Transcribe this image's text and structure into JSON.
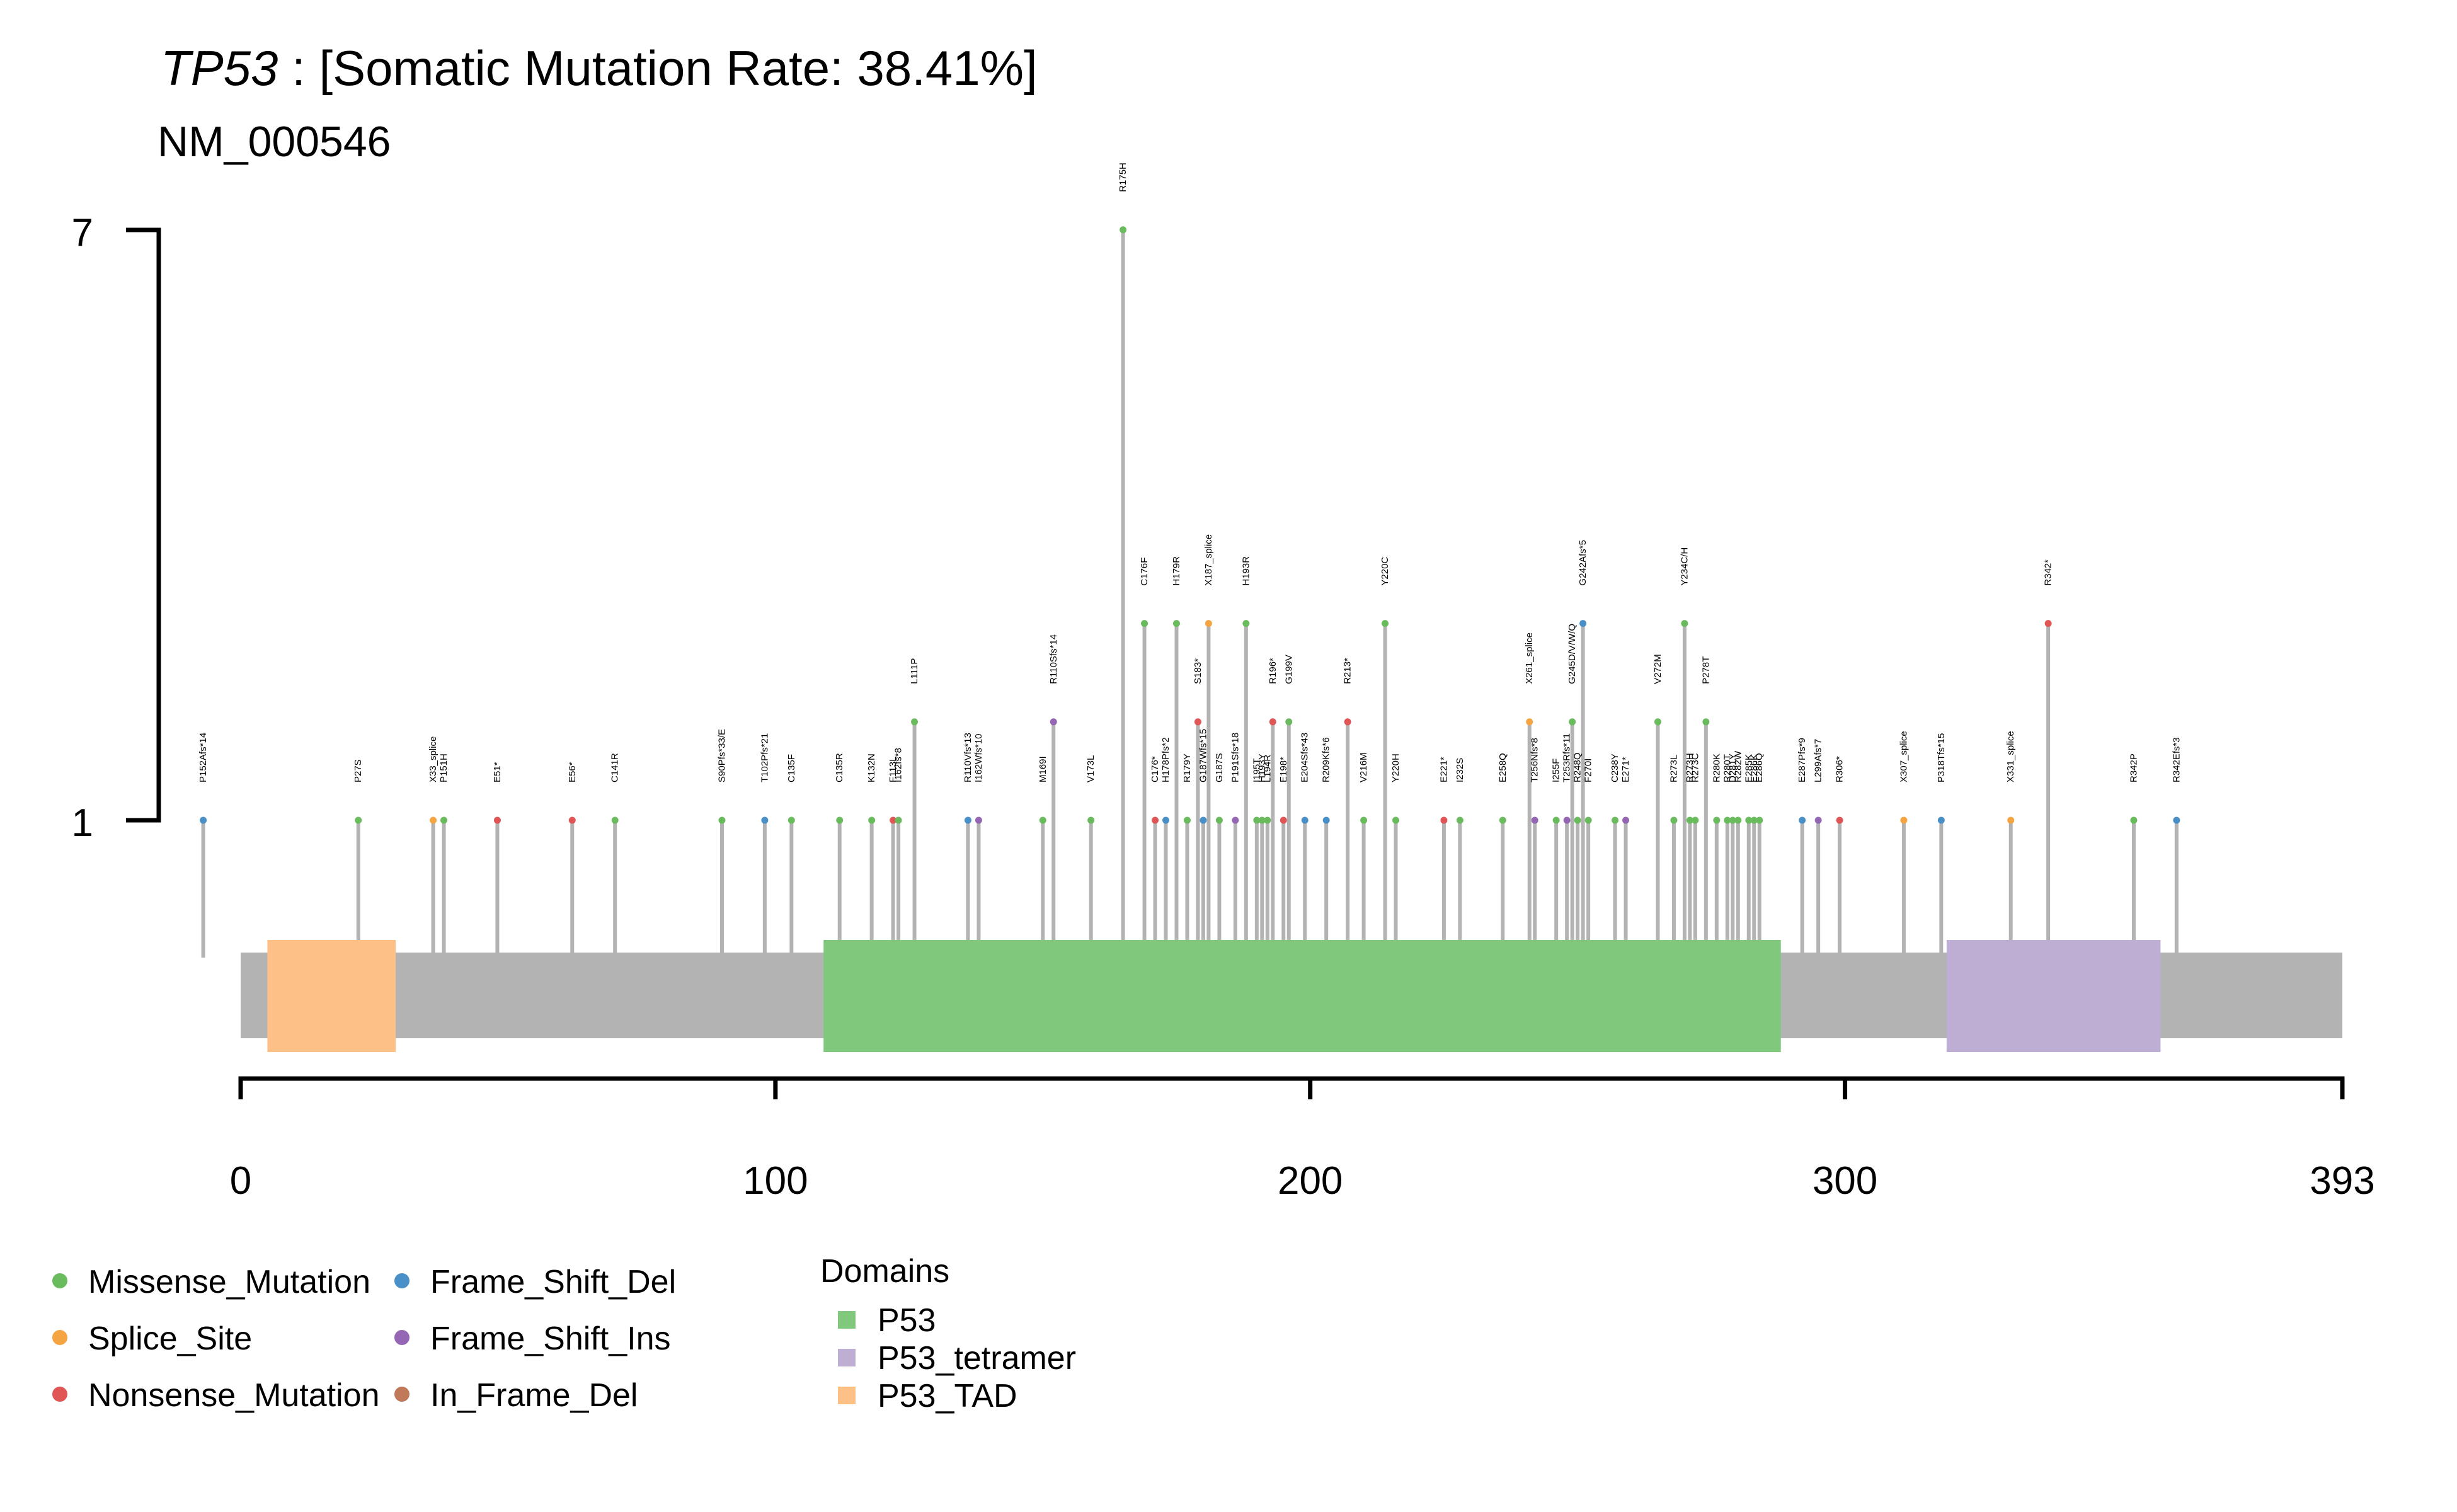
{
  "chart_data": {
    "type": "lollipop",
    "gene": "TP53",
    "title_rest": " : [Somatic Mutation Rate: 38.41%]",
    "subtitle": "NM_000546",
    "protein_length": 393,
    "y_ticks": [
      "7",
      "1"
    ],
    "x_ticks": [
      0,
      100,
      200,
      300,
      393
    ],
    "colors": {
      "Missense_Mutation": "#6ABB5D",
      "Splice_Site": "#F4A440",
      "Nonsense_Mutation": "#E05555",
      "Frame_Shift_Del": "#4A90C8",
      "Frame_Shift_Ins": "#9466B4",
      "In_Frame_Del": "#C07A5A",
      "backbone": "#B3B3B3",
      "P53": "#80C97C",
      "P53_tetramer": "#BEAED4",
      "P53_TAD": "#FDC086"
    },
    "domains": [
      {
        "name": "P53_TAD",
        "start": 5,
        "end": 29
      },
      {
        "name": "P53",
        "start": 109,
        "end": 288
      },
      {
        "name": "P53_tetramer",
        "start": 319,
        "end": 359
      }
    ],
    "mutations": [
      {
        "pos": -7,
        "count": 1,
        "type": "Frame_Shift_Del",
        "label": "P152Afs*14"
      },
      {
        "pos": 22,
        "count": 1,
        "type": "Missense_Mutation",
        "label": "P27S"
      },
      {
        "pos": 36,
        "count": 1,
        "type": "Splice_Site",
        "label": "X33_splice"
      },
      {
        "pos": 38,
        "count": 1,
        "type": "Missense_Mutation",
        "label": "P151H"
      },
      {
        "pos": 48,
        "count": 1,
        "type": "Nonsense_Mutation",
        "label": "E51*"
      },
      {
        "pos": 62,
        "count": 1,
        "type": "Nonsense_Mutation",
        "label": "E56*"
      },
      {
        "pos": 70,
        "count": 1,
        "type": "Missense_Mutation",
        "label": "C141R"
      },
      {
        "pos": 90,
        "count": 1,
        "type": "Missense_Mutation",
        "label": "S90Pfs*33/E"
      },
      {
        "pos": 98,
        "count": 1,
        "type": "Frame_Shift_Del",
        "label": "T102Pfs*21"
      },
      {
        "pos": 103,
        "count": 1,
        "type": "Missense_Mutation",
        "label": "C135F"
      },
      {
        "pos": 112,
        "count": 1,
        "type": "Missense_Mutation",
        "label": "C135R"
      },
      {
        "pos": 118,
        "count": 1,
        "type": "Missense_Mutation",
        "label": "K132N"
      },
      {
        "pos": 122,
        "count": 1,
        "type": "Nonsense_Mutation",
        "label": "F113L"
      },
      {
        "pos": 123,
        "count": 1,
        "type": "Missense_Mutation",
        "label": "I162fs*8"
      },
      {
        "pos": 126,
        "count": 2,
        "type": "Missense_Mutation",
        "label": "L111P"
      },
      {
        "pos": 136,
        "count": 1,
        "type": "Frame_Shift_Del",
        "label": "R110Vfs*13"
      },
      {
        "pos": 138,
        "count": 1,
        "type": "Frame_Shift_Ins",
        "label": "I162Wfs*10"
      },
      {
        "pos": 150,
        "count": 1,
        "type": "Missense_Mutation",
        "label": "M169I"
      },
      {
        "pos": 152,
        "count": 2,
        "type": "Frame_Shift_Ins",
        "label": "R110Sfs*14"
      },
      {
        "pos": 159,
        "count": 1,
        "type": "Missense_Mutation",
        "label": "V173L"
      },
      {
        "pos": 165,
        "count": 7,
        "type": "Missense_Mutation",
        "label": "R175H"
      },
      {
        "pos": 169,
        "count": 3,
        "type": "Missense_Mutation",
        "label": "C176F"
      },
      {
        "pos": 171,
        "count": 1,
        "type": "Nonsense_Mutation",
        "label": "C176*"
      },
      {
        "pos": 173,
        "count": 1,
        "type": "Frame_Shift_Del",
        "label": "H178Pfs*2"
      },
      {
        "pos": 175,
        "count": 3,
        "type": "Missense_Mutation",
        "label": "H179R"
      },
      {
        "pos": 177,
        "count": 1,
        "type": "Missense_Mutation",
        "label": "R179Y"
      },
      {
        "pos": 179,
        "count": 2,
        "type": "Nonsense_Mutation",
        "label": "S183*"
      },
      {
        "pos": 180,
        "count": 1,
        "type": "Frame_Shift_Del",
        "label": "G187Wfs*15"
      },
      {
        "pos": 181,
        "count": 3,
        "type": "Splice_Site",
        "label": "X187_splice"
      },
      {
        "pos": 183,
        "count": 1,
        "type": "Missense_Mutation",
        "label": "G187S"
      },
      {
        "pos": 186,
        "count": 1,
        "type": "Frame_Shift_Ins",
        "label": "P191Sfs*18"
      },
      {
        "pos": 188,
        "count": 3,
        "type": "Missense_Mutation",
        "label": "H193R"
      },
      {
        "pos": 190,
        "count": 1,
        "type": "Missense_Mutation",
        "label": "I195T"
      },
      {
        "pos": 191,
        "count": 1,
        "type": "Missense_Mutation",
        "label": "H193Y"
      },
      {
        "pos": 192,
        "count": 1,
        "type": "Missense_Mutation",
        "label": "L194R"
      },
      {
        "pos": 193,
        "count": 2,
        "type": "Nonsense_Mutation",
        "label": "R196*"
      },
      {
        "pos": 195,
        "count": 1,
        "type": "Nonsense_Mutation",
        "label": "E198*"
      },
      {
        "pos": 196,
        "count": 2,
        "type": "Missense_Mutation",
        "label": "G199V"
      },
      {
        "pos": 199,
        "count": 1,
        "type": "Frame_Shift_Del",
        "label": "E204Sfs*43"
      },
      {
        "pos": 203,
        "count": 1,
        "type": "Frame_Shift_Del",
        "label": "R209Kfs*6"
      },
      {
        "pos": 207,
        "count": 2,
        "type": "Nonsense_Mutation",
        "label": "R213*"
      },
      {
        "pos": 210,
        "count": 1,
        "type": "Missense_Mutation",
        "label": "V216M"
      },
      {
        "pos": 214,
        "count": 3,
        "type": "Missense_Mutation",
        "label": "Y220C"
      },
      {
        "pos": 216,
        "count": 1,
        "type": "Missense_Mutation",
        "label": "Y220H"
      },
      {
        "pos": 225,
        "count": 1,
        "type": "Nonsense_Mutation",
        "label": "E221*"
      },
      {
        "pos": 228,
        "count": 1,
        "type": "Missense_Mutation",
        "label": "I232S"
      },
      {
        "pos": 236,
        "count": 1,
        "type": "Missense_Mutation",
        "label": "E258Q"
      },
      {
        "pos": 241,
        "count": 2,
        "type": "Splice_Site",
        "label": "X261_splice"
      },
      {
        "pos": 242,
        "count": 1,
        "type": "Frame_Shift_Ins",
        "label": "T256Nfs*8"
      },
      {
        "pos": 246,
        "count": 1,
        "type": "Missense_Mutation",
        "label": "I255F"
      },
      {
        "pos": 248,
        "count": 1,
        "type": "Frame_Shift_Ins",
        "label": "T253Rfs*11"
      },
      {
        "pos": 249,
        "count": 2,
        "type": "Missense_Mutation",
        "label": "G245D/V/W/Q"
      },
      {
        "pos": 250,
        "count": 1,
        "type": "Missense_Mutation",
        "label": "R248Q"
      },
      {
        "pos": 251,
        "count": 3,
        "type": "Frame_Shift_Del",
        "label": "G242Afs*5"
      },
      {
        "pos": 252,
        "count": 1,
        "type": "Missense_Mutation",
        "label": "F270I"
      },
      {
        "pos": 257,
        "count": 1,
        "type": "Missense_Mutation",
        "label": "C238Y"
      },
      {
        "pos": 259,
        "count": 1,
        "type": "Frame_Shift_Ins",
        "label": "E271*"
      },
      {
        "pos": 265,
        "count": 2,
        "type": "Missense_Mutation",
        "label": "V272M"
      },
      {
        "pos": 268,
        "count": 1,
        "type": "Missense_Mutation",
        "label": "R273L"
      },
      {
        "pos": 270,
        "count": 3,
        "type": "Missense_Mutation",
        "label": "Y234C/H"
      },
      {
        "pos": 271,
        "count": 1,
        "type": "Missense_Mutation",
        "label": "R273H"
      },
      {
        "pos": 272,
        "count": 1,
        "type": "Missense_Mutation",
        "label": "R273C"
      },
      {
        "pos": 274,
        "count": 2,
        "type": "Missense_Mutation",
        "label": "P278T"
      },
      {
        "pos": 276,
        "count": 1,
        "type": "Missense_Mutation",
        "label": "R280K"
      },
      {
        "pos": 278,
        "count": 1,
        "type": "Missense_Mutation",
        "label": "R280T"
      },
      {
        "pos": 279,
        "count": 1,
        "type": "Missense_Mutation",
        "label": "D281Y"
      },
      {
        "pos": 280,
        "count": 1,
        "type": "Missense_Mutation",
        "label": "R282W"
      },
      {
        "pos": 282,
        "count": 1,
        "type": "Missense_Mutation",
        "label": "E285K"
      },
      {
        "pos": 283,
        "count": 1,
        "type": "Missense_Mutation",
        "label": "E286K"
      },
      {
        "pos": 284,
        "count": 1,
        "type": "Missense_Mutation",
        "label": "E286Q"
      },
      {
        "pos": 292,
        "count": 1,
        "type": "Frame_Shift_Del",
        "label": "E287Pfs*9"
      },
      {
        "pos": 295,
        "count": 1,
        "type": "Frame_Shift_Ins",
        "label": "L299Afs*7"
      },
      {
        "pos": 299,
        "count": 1,
        "type": "Nonsense_Mutation",
        "label": "R306*"
      },
      {
        "pos": 311,
        "count": 1,
        "type": "Splice_Site",
        "label": "X307_splice"
      },
      {
        "pos": 318,
        "count": 1,
        "type": "Frame_Shift_Del",
        "label": "P318Tfs*15"
      },
      {
        "pos": 331,
        "count": 1,
        "type": "Splice_Site",
        "label": "X331_splice"
      },
      {
        "pos": 338,
        "count": 3,
        "type": "Nonsense_Mutation",
        "label": "R342*"
      },
      {
        "pos": 354,
        "count": 1,
        "type": "Missense_Mutation",
        "label": "R342P"
      },
      {
        "pos": 362,
        "count": 1,
        "type": "Frame_Shift_Del",
        "label": "R342Efs*3"
      }
    ],
    "legend_mutations": [
      {
        "name": "Missense_Mutation",
        "key": "Missense_Mutation"
      },
      {
        "name": "Splice_Site",
        "key": "Splice_Site"
      },
      {
        "name": "Nonsense_Mutation",
        "key": "Nonsense_Mutation"
      },
      {
        "name": "Frame_Shift_Del",
        "key": "Frame_Shift_Del"
      },
      {
        "name": "Frame_Shift_Ins",
        "key": "Frame_Shift_Ins"
      },
      {
        "name": "In_Frame_Del",
        "key": "In_Frame_Del"
      }
    ],
    "legend_domains_title": "Domains",
    "legend_domains": [
      {
        "name": "P53",
        "key": "P53"
      },
      {
        "name": "P53_tetramer",
        "key": "P53_tetramer"
      },
      {
        "name": "P53_TAD",
        "key": "P53_TAD"
      }
    ]
  }
}
